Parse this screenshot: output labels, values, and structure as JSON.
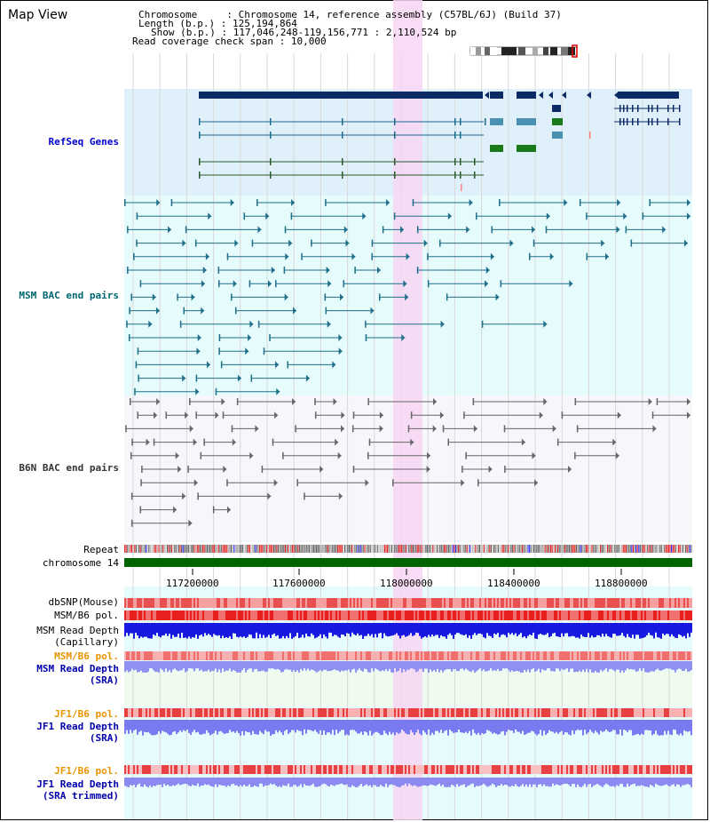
{
  "title": "Map View",
  "info": {
    "chromosome_key": "Chromosome",
    "chromosome_val": "Chromosome 14, reference assembly (C57BL/6J) (Build 37)",
    "length_key": "Length (b.p.)",
    "length_val": "125,194,864",
    "show_key": "Show (b.p.)",
    "show_val": "117,046,248-119,156,771 : 2,110,524 bp",
    "coverage_key": "Read coverage check span",
    "coverage_val": "10,000"
  },
  "tracks": {
    "refseq": "RefSeq Genes",
    "msm_bac": "MSM BAC end pairs",
    "b6n_bac": "B6N BAC end pairs",
    "repeat": "Repeat",
    "chromosome": "chromosome 14",
    "dbsnp": "dbSNP(Mouse)",
    "msm_b6_pol": "MSM/B6 pol.",
    "msm_depth_cap_1": "MSM Read Depth",
    "msm_depth_cap_2": "(Capillary)",
    "msm_b6_pol_2": "MSM/B6 pol.",
    "msm_depth_sra_1": "MSM Read Depth",
    "msm_depth_sra_2": "(SRA)",
    "jf1_pol": "JF1/B6 pol.",
    "jf1_depth_1": "JF1 Read Depth",
    "jf1_depth_2": "(SRA)",
    "jf1_pol_2": "JF1/B6 pol.",
    "jf1_trim_1": "JF1 Read Depth",
    "jf1_trim_2": "(SRA trimmed)"
  },
  "ruler": [
    "117200000",
    "117600000",
    "118000000",
    "118400000",
    "118800000"
  ],
  "colors": {
    "refseq_bg": "#dff0fa",
    "msm_bg": "#e6fbfb",
    "b6n_bg": "#f5f7fb",
    "highlight": "#f7d6f3",
    "refseq_label": "#0000cc",
    "msm_label": "#006670",
    "b6n_label": "#333333",
    "pol_label": "#e89400",
    "depth_label": "#0000aa",
    "chromosome_bar": "#006400"
  }
}
